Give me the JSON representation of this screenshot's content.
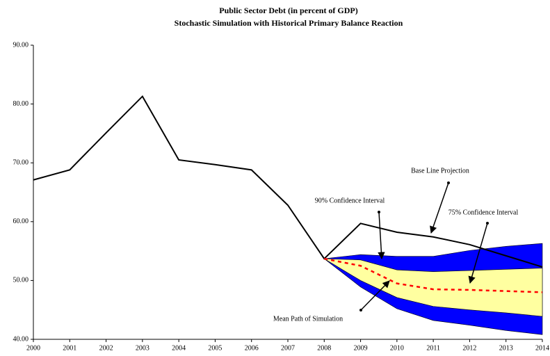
{
  "chart_data": {
    "type": "line",
    "title": "Public Sector Debt (in percent of GDP)",
    "subtitle": "Stochastic Simulation with Historical Primary Balance Reaction",
    "x": [
      2000,
      2001,
      2002,
      2003,
      2004,
      2005,
      2006,
      2007,
      2008,
      2009,
      2010,
      2011,
      2012,
      2013,
      2014
    ],
    "xlim": [
      2000,
      2014
    ],
    "xticks": [
      2000,
      2001,
      2002,
      2003,
      2004,
      2005,
      2006,
      2007,
      2008,
      2009,
      2010,
      2011,
      2012,
      2013,
      2014
    ],
    "ylim": [
      40,
      90
    ],
    "yticks": [
      {
        "value": 40,
        "label": "40.00"
      },
      {
        "value": 50,
        "label": "50.00"
      },
      {
        "value": 60,
        "label": "60.00"
      },
      {
        "value": 70,
        "label": "70.00"
      },
      {
        "value": 80,
        "label": "80.00"
      },
      {
        "value": 90,
        "label": "90.00"
      }
    ],
    "bands": [
      {
        "color": "#0000ff",
        "upper": [
          null,
          null,
          null,
          null,
          null,
          null,
          null,
          null,
          53.7,
          54.4,
          54.1,
          54.1,
          55.1,
          55.8,
          56.3
        ],
        "lower": [
          null,
          null,
          null,
          null,
          null,
          null,
          null,
          null,
          53.7,
          48.9,
          45.2,
          43.2,
          42.4,
          41.5,
          40.8
        ]
      },
      {
        "color": "#ffffa0",
        "upper": [
          null,
          null,
          null,
          null,
          null,
          null,
          null,
          null,
          53.7,
          53.5,
          51.8,
          51.5,
          51.7,
          51.9,
          52.1
        ],
        "lower": [
          null,
          null,
          null,
          null,
          null,
          null,
          null,
          null,
          53.7,
          50.0,
          47.1,
          45.6,
          45.0,
          44.5,
          43.9
        ]
      }
    ],
    "series": [
      {
        "color": "#000000",
        "values": [
          67.1,
          68.8,
          75.1,
          81.3,
          70.5,
          69.7,
          68.8,
          62.8,
          53.7,
          59.7,
          58.2,
          57.4,
          56.1,
          54.2,
          52.3
        ]
      },
      {
        "color": "#ff0000",
        "dashed": true,
        "values": [
          null,
          null,
          null,
          null,
          null,
          null,
          null,
          null,
          53.7,
          52.5,
          49.5,
          48.5,
          48.4,
          48.2,
          48.0
        ]
      }
    ],
    "annotations": [
      "Base Line Projection",
      "90% Confidence Interval",
      "75% Confidence Interval",
      "Mean Path of Simulation"
    ]
  }
}
